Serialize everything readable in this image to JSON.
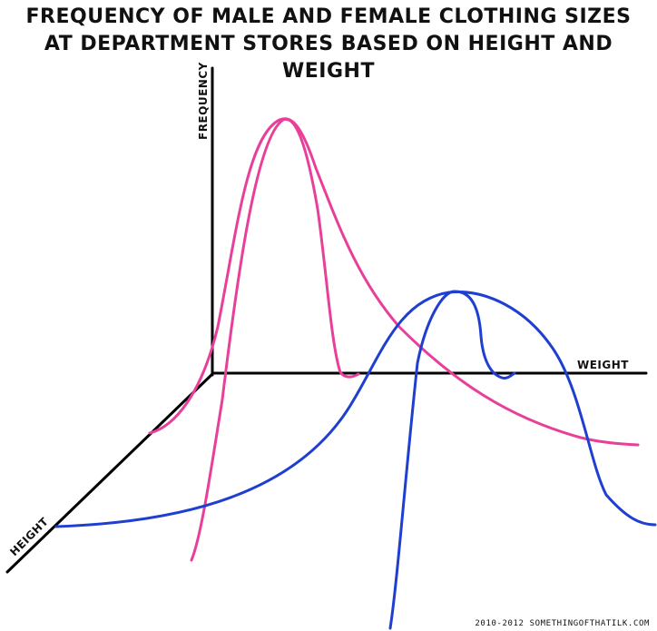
{
  "chart_data": {
    "type": "line",
    "title": "FREQUENCY OF MALE AND FEMALE CLOTHING SIZES AT DEPARTMENT STORES BASED ON HEIGHT AND WEIGHT",
    "title_lines": [
      "FREQUENCY OF MALE AND FEMALE CLOTHING SIZES",
      "AT DEPARTMENT STORES BASED ON HEIGHT AND WEIGHT"
    ],
    "axes": {
      "vertical": "FREQUENCY",
      "horizontal": "WEIGHT",
      "depth": "HEIGHT"
    },
    "ticks": "none",
    "grid": false,
    "legend": "none",
    "series": [
      {
        "color": "#e8409a",
        "shape": "two crossing peaked curves, high peak at low weight"
      },
      {
        "color": "#1f3fd1",
        "shape": "two crossing peaked curves, lower peak at higher weight"
      }
    ]
  },
  "credit": "2010-2012 SOMETHINGOFTHATILK.COM"
}
